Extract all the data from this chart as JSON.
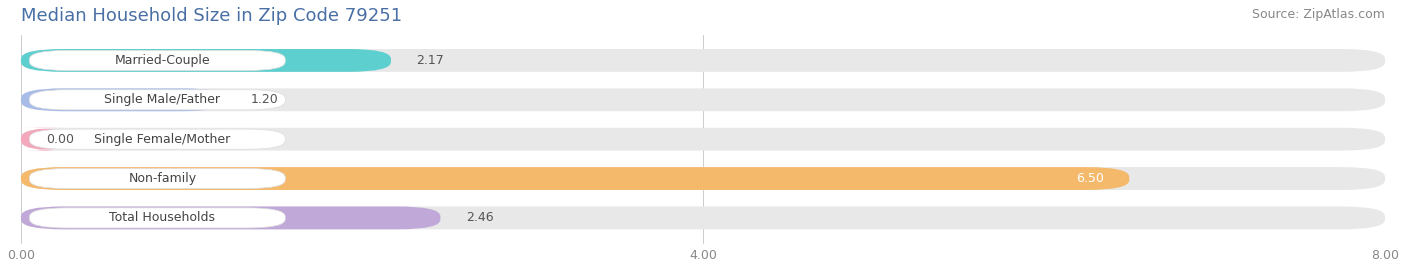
{
  "title": "Median Household Size in Zip Code 79251",
  "source": "Source: ZipAtlas.com",
  "categories": [
    "Married-Couple",
    "Single Male/Father",
    "Single Female/Mother",
    "Non-family",
    "Total Households"
  ],
  "values": [
    2.17,
    1.2,
    0.0,
    6.5,
    2.46
  ],
  "bar_colors": [
    "#5ecfcf",
    "#a8bce8",
    "#f4a8bc",
    "#f5b96b",
    "#c0a8d8"
  ],
  "value_colors": [
    "#555555",
    "#555555",
    "#555555",
    "#ffffff",
    "#555555"
  ],
  "xlim": [
    0,
    8.0
  ],
  "xticks": [
    0.0,
    4.0,
    8.0
  ],
  "xtick_labels": [
    "0.00",
    "4.00",
    "8.00"
  ],
  "background_color": "#ffffff",
  "bar_background_color": "#e8e8e8",
  "title_fontsize": 13,
  "source_fontsize": 9,
  "bar_height": 0.58,
  "bar_label_fontsize": 9,
  "category_fontsize": 9,
  "tick_fontsize": 9,
  "title_color": "#4a6fa5",
  "source_color": "#888888",
  "tick_color": "#888888"
}
